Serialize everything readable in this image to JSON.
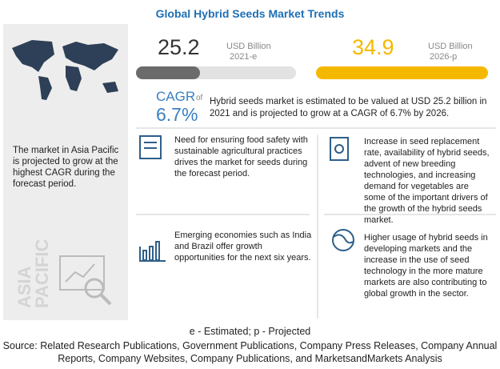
{
  "header": {
    "title": "Global Hybrid Seeds Market Trends"
  },
  "left_panel": {
    "text": "The market in Asia Pacific is projected to grow at the highest CAGR during the forecast period.",
    "region_label": [
      "ASIA",
      "PACIFIC"
    ]
  },
  "market_size": [
    {
      "value": 25.2,
      "unit": "USD Billion",
      "year": "2021-e"
    },
    {
      "value": 34.9,
      "unit": "USD Billion",
      "year": "2026-p"
    }
  ],
  "cagr": {
    "label": "CAGR",
    "of": "of",
    "value": "6.7%"
  },
  "summary": "Hybrid seeds market is estimated to be valued at USD 25.2 billion in 2021 and is projected to grow at a CAGR of 6.7% by 2026.",
  "drivers": [
    "Need for ensuring food safety with sustainable agricultural practices drives the market for seeds during the forecast period.",
    "Emerging economies such as India and Brazil offer growth opportunities for the next six years.",
    "Increase in seed replacement rate, availability of hybrid seeds, advent of new breeding technologies, and increasing demand for vegetables are some of the important drivers of the growth of the hybrid seeds market.",
    "Higher usage of hybrid seeds in developing markets and the increase in the use of seed technology in the more mature markets are also contributing to global growth in the sector."
  ],
  "footnote": "e - Estimated; p - Projected",
  "source": "Source: Related Research Publications, Government Publications, Company Press Releases, Company Annual Reports, Company Websites, Company Publications, and MarketsandMarkets Analysis"
}
